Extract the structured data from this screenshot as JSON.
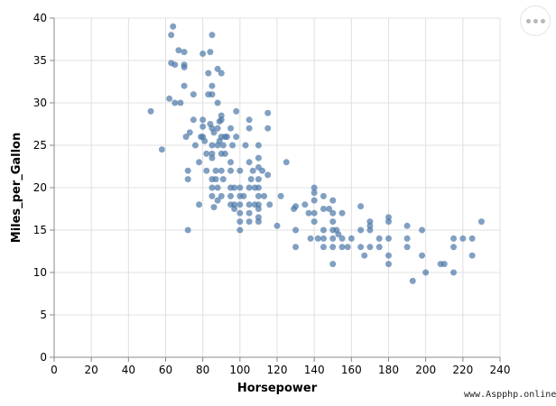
{
  "menu": {
    "icon": "more-horizontal-icon"
  },
  "watermark": "www.Aspphp.online",
  "chart_data": {
    "type": "scatter",
    "title": "",
    "xlabel": "Horsepower",
    "ylabel": "Miles_per_Gallon",
    "xlim": [
      0,
      240
    ],
    "ylim": [
      0,
      40
    ],
    "x_ticks": [
      0,
      20,
      40,
      60,
      80,
      100,
      120,
      140,
      160,
      180,
      200,
      220,
      240
    ],
    "y_ticks": [
      0,
      5,
      10,
      15,
      20,
      25,
      30,
      35,
      40
    ],
    "grid": true,
    "legend": "none",
    "point_color": "#4c78a8",
    "points": [
      [
        52,
        29
      ],
      [
        58,
        24.5
      ],
      [
        62,
        30.5
      ],
      [
        63,
        34.7
      ],
      [
        63,
        38
      ],
      [
        64,
        39
      ],
      [
        65,
        34.5
      ],
      [
        65,
        30
      ],
      [
        67,
        36.2
      ],
      [
        68,
        30
      ],
      [
        70,
        36
      ],
      [
        70,
        34.5
      ],
      [
        70,
        34.2
      ],
      [
        70,
        32
      ],
      [
        71,
        26
      ],
      [
        72,
        22
      ],
      [
        72,
        21
      ],
      [
        72,
        15
      ],
      [
        73,
        26.5
      ],
      [
        75,
        28
      ],
      [
        75,
        31
      ],
      [
        76,
        25
      ],
      [
        78,
        23
      ],
      [
        78,
        18
      ],
      [
        79,
        26
      ],
      [
        80,
        26
      ],
      [
        80,
        28
      ],
      [
        80,
        27.2
      ],
      [
        80,
        35.8
      ],
      [
        81,
        25.5
      ],
      [
        82,
        24
      ],
      [
        82,
        22
      ],
      [
        83,
        31
      ],
      [
        83,
        33.5
      ],
      [
        84,
        36
      ],
      [
        84,
        27.5
      ],
      [
        85,
        38
      ],
      [
        85,
        32
      ],
      [
        85,
        31
      ],
      [
        85,
        27
      ],
      [
        85,
        25
      ],
      [
        85,
        24
      ],
      [
        85,
        23.5
      ],
      [
        85,
        21
      ],
      [
        85,
        20
      ],
      [
        85,
        19
      ],
      [
        86,
        17.7
      ],
      [
        86,
        26.5
      ],
      [
        87,
        22
      ],
      [
        87,
        21
      ],
      [
        88,
        25
      ],
      [
        88,
        27
      ],
      [
        88,
        34
      ],
      [
        88,
        30
      ],
      [
        88,
        20
      ],
      [
        88,
        18.5
      ],
      [
        89,
        25.5
      ],
      [
        89,
        27.8
      ],
      [
        90,
        28
      ],
      [
        90,
        26
      ],
      [
        90,
        24
      ],
      [
        90,
        22
      ],
      [
        90,
        33.5
      ],
      [
        90,
        19
      ],
      [
        90,
        28.5
      ],
      [
        91,
        25
      ],
      [
        91,
        21
      ],
      [
        92,
        26
      ],
      [
        92,
        24
      ],
      [
        93,
        26
      ],
      [
        95,
        27
      ],
      [
        95,
        23
      ],
      [
        95,
        22
      ],
      [
        95,
        20
      ],
      [
        95,
        19
      ],
      [
        95,
        18
      ],
      [
        96,
        25
      ],
      [
        97,
        20
      ],
      [
        97,
        18
      ],
      [
        97,
        17.5
      ],
      [
        98,
        29
      ],
      [
        98,
        26
      ],
      [
        100,
        22
      ],
      [
        100,
        20
      ],
      [
        100,
        19
      ],
      [
        100,
        18
      ],
      [
        100,
        17
      ],
      [
        100,
        16
      ],
      [
        100,
        15
      ],
      [
        102,
        19
      ],
      [
        103,
        25
      ],
      [
        105,
        28
      ],
      [
        105,
        27
      ],
      [
        105,
        23
      ],
      [
        105,
        20
      ],
      [
        105,
        18
      ],
      [
        105,
        17
      ],
      [
        105,
        16
      ],
      [
        106,
        21
      ],
      [
        107,
        22
      ],
      [
        108,
        20
      ],
      [
        108,
        18
      ],
      [
        110,
        25
      ],
      [
        110,
        23.5
      ],
      [
        110,
        22.4
      ],
      [
        110,
        21
      ],
      [
        110,
        20
      ],
      [
        110,
        19
      ],
      [
        110,
        18
      ],
      [
        110,
        17.5
      ],
      [
        110,
        16.5
      ],
      [
        110,
        16
      ],
      [
        112,
        22
      ],
      [
        113,
        19
      ],
      [
        115,
        28.8
      ],
      [
        115,
        27
      ],
      [
        115,
        21.5
      ],
      [
        116,
        18
      ],
      [
        120,
        15.5
      ],
      [
        122,
        19
      ],
      [
        125,
        23
      ],
      [
        129,
        17.5
      ],
      [
        130,
        17.8
      ],
      [
        130,
        15
      ],
      [
        130,
        13
      ],
      [
        135,
        18
      ],
      [
        137,
        17
      ],
      [
        138,
        14
      ],
      [
        140,
        20
      ],
      [
        140,
        19.4
      ],
      [
        140,
        18.5
      ],
      [
        140,
        17
      ],
      [
        140,
        16
      ],
      [
        142,
        14
      ],
      [
        145,
        19
      ],
      [
        145,
        17.5
      ],
      [
        145,
        15
      ],
      [
        145,
        14
      ],
      [
        145,
        13
      ],
      [
        148,
        17.5
      ],
      [
        150,
        18.5
      ],
      [
        150,
        17
      ],
      [
        150,
        16
      ],
      [
        150,
        15
      ],
      [
        150,
        14
      ],
      [
        150,
        13
      ],
      [
        150,
        11
      ],
      [
        152,
        15
      ],
      [
        153,
        14.5
      ],
      [
        155,
        17
      ],
      [
        155,
        14
      ],
      [
        155,
        13
      ],
      [
        158,
        13
      ],
      [
        160,
        14
      ],
      [
        165,
        17.8
      ],
      [
        165,
        15
      ],
      [
        165,
        13
      ],
      [
        167,
        12
      ],
      [
        170,
        16
      ],
      [
        170,
        15.5
      ],
      [
        170,
        15
      ],
      [
        170,
        13
      ],
      [
        175,
        14
      ],
      [
        175,
        13
      ],
      [
        180,
        16.5
      ],
      [
        180,
        16
      ],
      [
        180,
        14
      ],
      [
        180,
        12
      ],
      [
        180,
        11
      ],
      [
        190,
        15.5
      ],
      [
        190,
        14
      ],
      [
        190,
        13
      ],
      [
        193,
        9
      ],
      [
        198,
        15
      ],
      [
        198,
        12
      ],
      [
        200,
        10
      ],
      [
        208,
        11
      ],
      [
        210,
        11
      ],
      [
        215,
        14
      ],
      [
        215,
        13
      ],
      [
        215,
        10
      ],
      [
        220,
        14
      ],
      [
        225,
        14
      ],
      [
        225,
        12
      ],
      [
        230,
        16
      ]
    ]
  }
}
